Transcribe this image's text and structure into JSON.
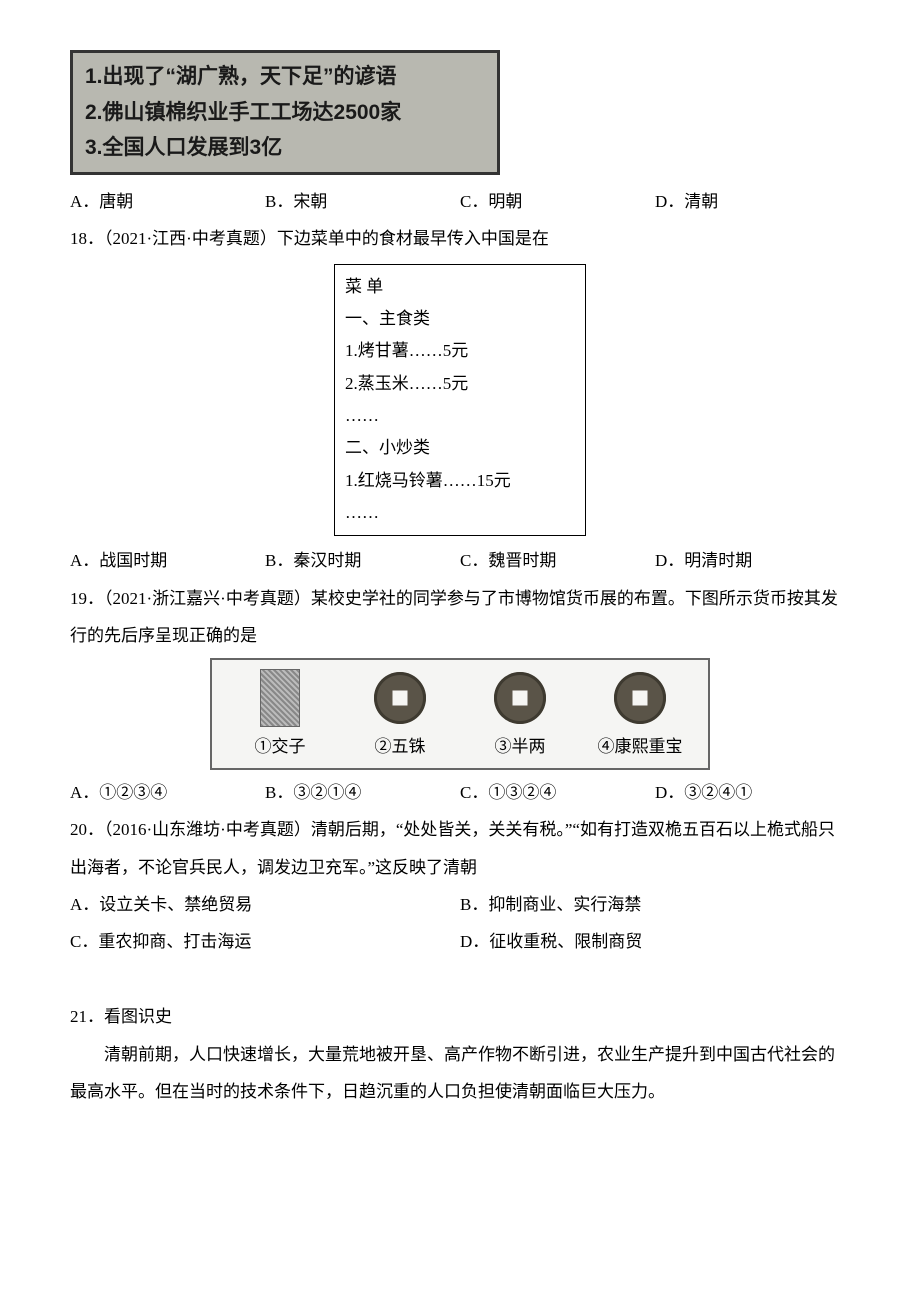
{
  "q17": {
    "box_lines": [
      "1.出现了“湖广熟，天下足”的谚语",
      "2.佛山镇棉织业手工工场达2500家",
      "3.全国人口发展到3亿"
    ],
    "opts": {
      "a": "A．唐朝",
      "b": "B．宋朝",
      "c": "C．明朝",
      "d": "D．清朝"
    }
  },
  "q18": {
    "stem": "18．（2021·江西·中考真题）下边菜单中的食材最早传入中国是在",
    "menu_title": "菜 单",
    "sec1": "一、主食类",
    "item1": "1.烤甘薯……5元",
    "item2": "2.蒸玉米……5元",
    "dots1": "……",
    "sec2": "二、小炒类",
    "item3": "1.红烧马铃薯……15元",
    "dots2": "……",
    "opts": {
      "a": "A．战国时期",
      "b": "B．秦汉时期",
      "c": "C．魏晋时期",
      "d": "D．明清时期"
    }
  },
  "q19": {
    "stem": "19．（2021·浙江嘉兴·中考真题）某校史学社的同学参与了市博物馆货币展的布置。下图所示货币按其发行的先后序呈现正确的是",
    "labels": {
      "c1": "①交子",
      "c2": "②五铢",
      "c3": "③半两",
      "c4": "④康熙重宝"
    },
    "opts": {
      "a": "A．①②③④",
      "b": "B．③②①④",
      "c": "C．①③②④",
      "d": "D．③②④①"
    }
  },
  "q20": {
    "stem": "20．（2016·山东潍坊·中考真题）清朝后期，“处处皆关，关关有税。”“如有打造双桅五百石以上桅式船只出海者，不论官兵民人，调发边卫充军。”这反映了清朝",
    "opts": {
      "a": "A．设立关卡、禁绝贸易",
      "b": "B．抑制商业、实行海禁",
      "c": "C．重农抑商、打击海运",
      "d": "D．征收重税、限制商贸"
    }
  },
  "q21": {
    "stem": "21．看图识史",
    "para": "清朝前期，人口快速增长，大量荒地被开垦、高产作物不断引进，农业生产提升到中国古代社会的最高水平。但在当时的技术条件下，日趋沉重的人口负担使清朝面临巨大压力。"
  }
}
